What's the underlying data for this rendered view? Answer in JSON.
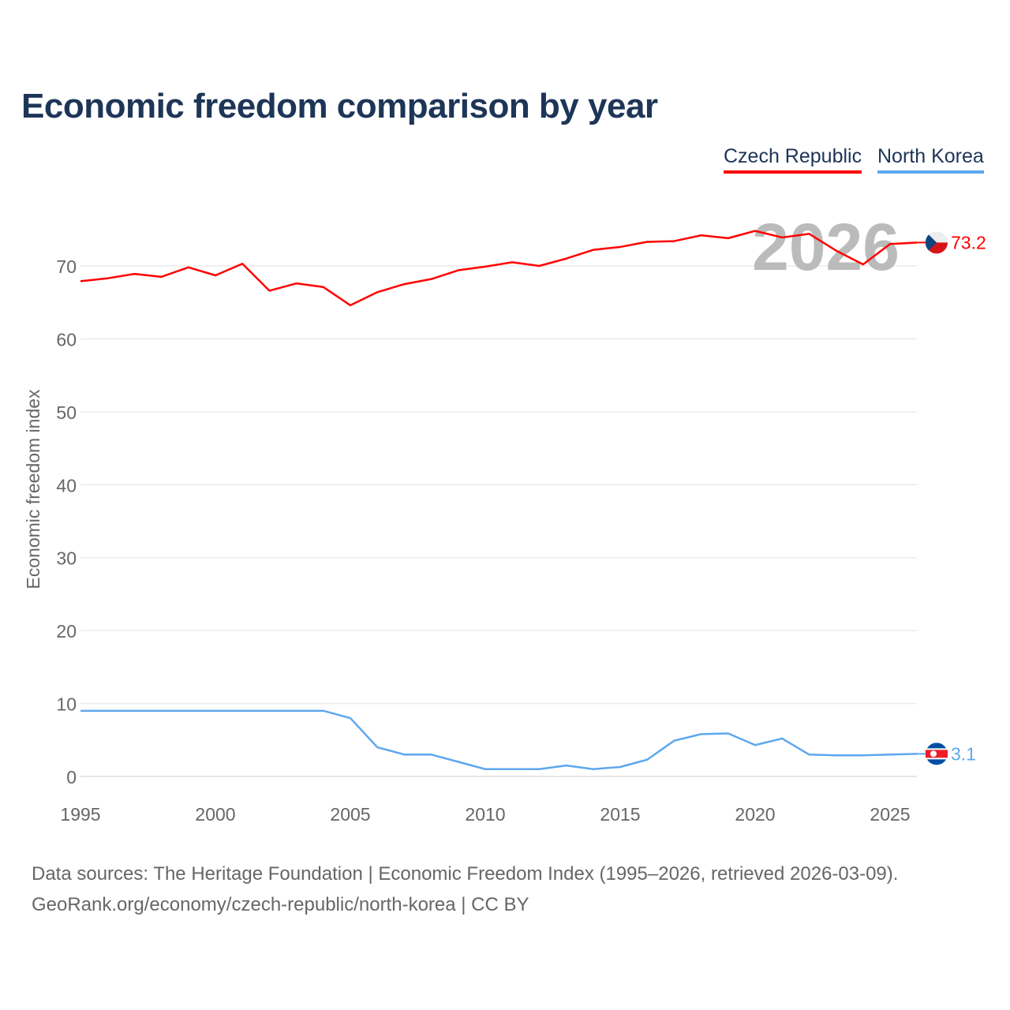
{
  "chart_data": {
    "type": "line",
    "title": "Economic freedom comparison by year",
    "xlabel": "",
    "ylabel": "Economic freedom index",
    "xlim": [
      1995,
      2026
    ],
    "ylim": [
      0,
      75
    ],
    "x_ticks": [
      "1995",
      "2000",
      "2005",
      "2010",
      "2015",
      "2020",
      "2025"
    ],
    "y_ticks": [
      "0",
      "10",
      "20",
      "30",
      "40",
      "50",
      "60",
      "70"
    ],
    "grid": true,
    "legend_position": "top-right",
    "watermark_year": "2026",
    "x": [
      1995,
      1996,
      1997,
      1998,
      1999,
      2000,
      2001,
      2002,
      2003,
      2004,
      2005,
      2006,
      2007,
      2008,
      2009,
      2010,
      2011,
      2012,
      2013,
      2014,
      2015,
      2016,
      2017,
      2018,
      2019,
      2020,
      2021,
      2022,
      2023,
      2024,
      2025,
      2026
    ],
    "series": [
      {
        "name": "Czech Republic",
        "color": "#ff0000",
        "end_label": "73.2",
        "values": [
          67.9,
          68.3,
          68.9,
          68.5,
          69.8,
          68.7,
          70.3,
          66.6,
          67.6,
          67.1,
          64.6,
          66.4,
          67.5,
          68.2,
          69.4,
          69.9,
          70.5,
          70.0,
          71.0,
          72.2,
          72.6,
          73.3,
          73.4,
          74.2,
          73.8,
          74.8,
          73.9,
          74.4,
          72.1,
          70.2,
          73.0,
          73.2
        ]
      },
      {
        "name": "North Korea",
        "color": "#5ea7ef",
        "end_label": "3.1",
        "values": [
          9.0,
          9.0,
          9.0,
          9.0,
          9.0,
          9.0,
          9.0,
          9.0,
          9.0,
          9.0,
          8.0,
          4.0,
          3.0,
          3.0,
          2.0,
          1.0,
          1.0,
          1.0,
          1.5,
          1.0,
          1.3,
          2.3,
          4.9,
          5.8,
          5.9,
          4.3,
          5.2,
          3.0,
          2.9,
          2.9,
          3.0,
          3.1
        ]
      }
    ]
  },
  "source": {
    "line1": "Data sources: The Heritage Foundation | Economic Freedom Index (1995–2026, retrieved 2026-03-09).",
    "line2": "GeoRank.org/economy/czech-republic/north-korea | CC BY"
  }
}
